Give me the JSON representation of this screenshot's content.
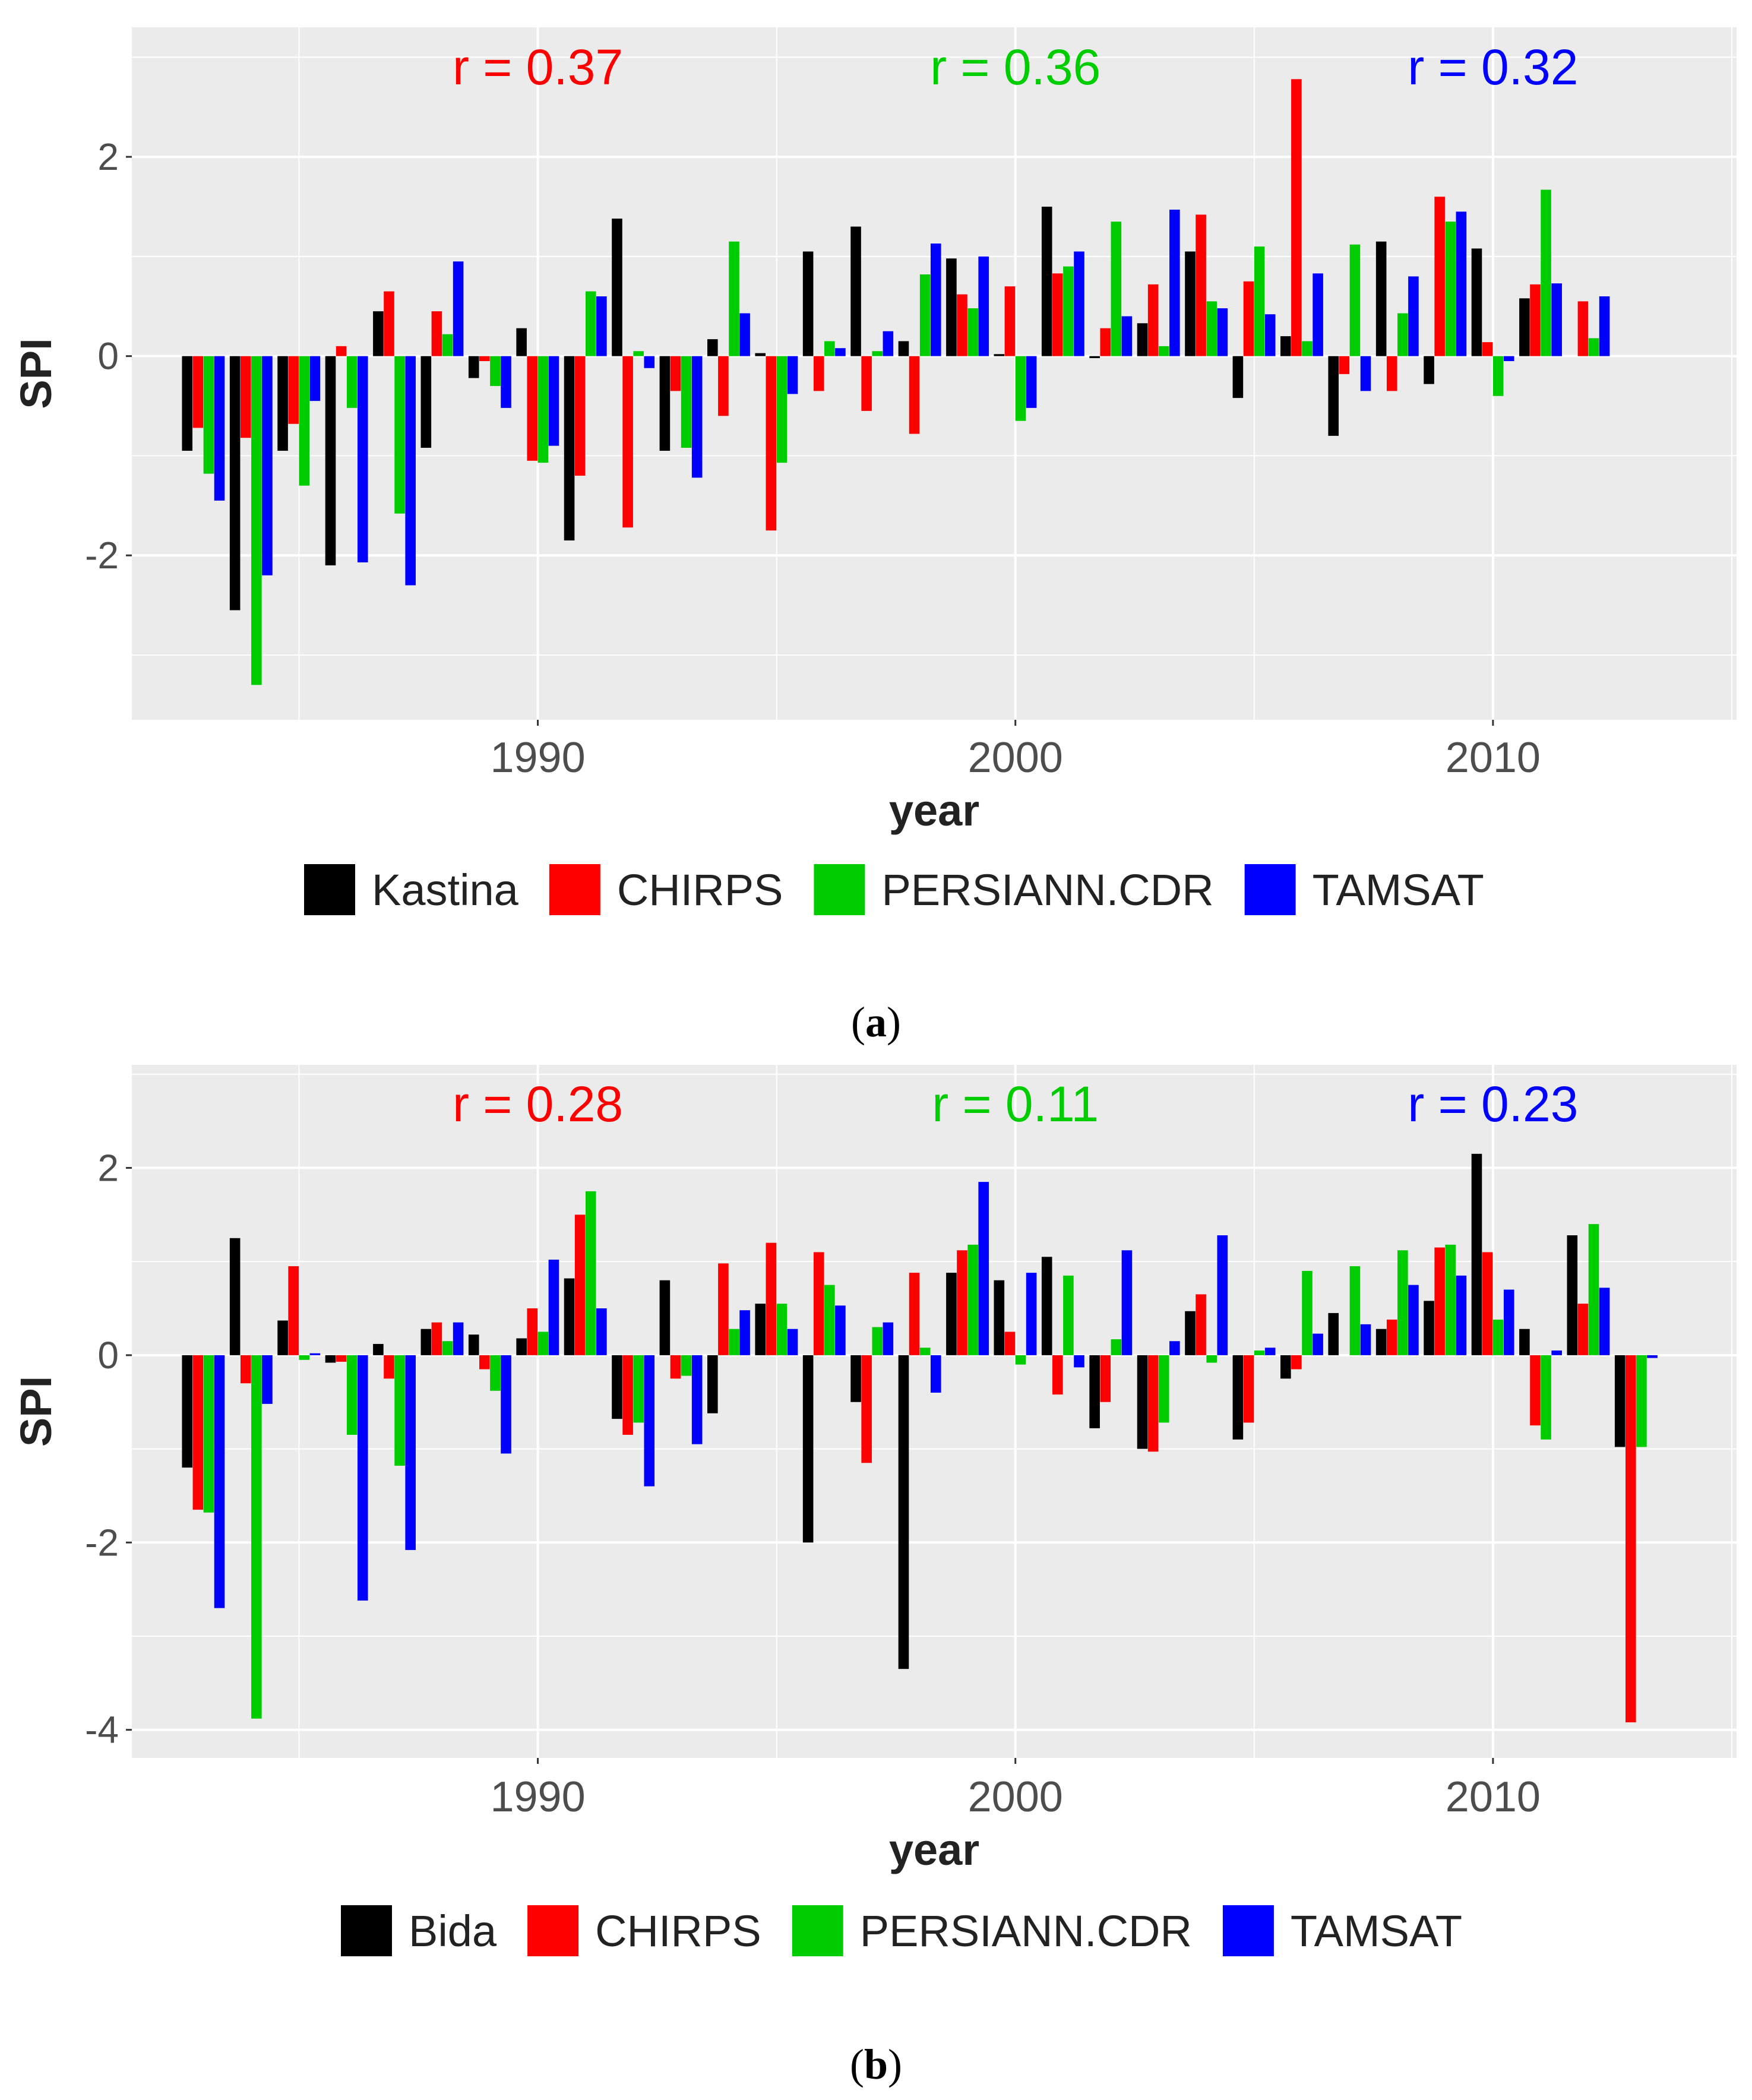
{
  "colors": {
    "station": "#000000",
    "chirps": "#ff0000",
    "persiann": "#00cd00",
    "tamsat": "#0000ff",
    "panel_bg": "#ebebeb",
    "grid": "#ffffff",
    "axis_text": "#4d4d4d"
  },
  "chart_data": [
    {
      "type": "bar",
      "panel": "a",
      "caption_open": "(",
      "caption_letter": "a",
      "caption_close": ")",
      "xlabel": "year",
      "ylabel": "SPI",
      "x_tick_labels": [
        "1990",
        "2000",
        "2010"
      ],
      "x_ticks": [
        1990,
        2000,
        2010
      ],
      "xlim": [
        1981.5,
        2015.1
      ],
      "y_tick_labels": [
        "2",
        "0",
        "-2"
      ],
      "y_ticks": [
        2,
        0,
        -2
      ],
      "ylim": [
        -3.65,
        3.3
      ],
      "annotations": [
        {
          "text": "r = 0.37",
          "color": "#ff0000",
          "year": 1990
        },
        {
          "text": "r = 0.36",
          "color": "#00cd00",
          "year": 2000
        },
        {
          "text": "r = 0.32",
          "color": "#0000ff",
          "year": 2010
        }
      ],
      "legend": [
        "Kastina",
        "CHIRPS",
        "PERSIANN.CDR",
        "TAMSAT"
      ],
      "years": [
        1983,
        1984,
        1985,
        1986,
        1987,
        1988,
        1989,
        1990,
        1991,
        1992,
        1993,
        1994,
        1995,
        1996,
        1997,
        1998,
        1999,
        2000,
        2001,
        2002,
        2003,
        2004,
        2005,
        2006,
        2007,
        2008,
        2009,
        2010,
        2011,
        2012,
        2013
      ],
      "series": [
        {
          "name": "Kastina",
          "color_key": "station",
          "values": [
            -0.95,
            -2.55,
            -0.95,
            -2.1,
            0.45,
            -0.92,
            -0.22,
            0.28,
            -1.85,
            1.38,
            -0.95,
            0.17,
            0.03,
            1.05,
            1.3,
            0.15,
            0.98,
            0.02,
            1.5,
            -0.02,
            0.33,
            1.05,
            -0.42,
            0.2,
            -0.8,
            1.15,
            -0.28,
            1.08,
            0.58,
            0.0,
            0.0
          ]
        },
        {
          "name": "CHIRPS",
          "color_key": "chirps",
          "values": [
            -0.72,
            -0.82,
            -0.68,
            0.1,
            0.65,
            0.45,
            -0.05,
            -1.05,
            -1.2,
            -1.72,
            -0.35,
            -0.6,
            -1.75,
            -0.35,
            -0.55,
            -0.78,
            0.62,
            0.7,
            0.83,
            0.28,
            0.72,
            1.42,
            0.75,
            2.78,
            -0.18,
            -0.35,
            1.6,
            0.14,
            0.72,
            0.55,
            0.0
          ]
        },
        {
          "name": "PERSIANN.CDR",
          "color_key": "persiann",
          "values": [
            -1.18,
            -3.3,
            -1.3,
            -0.52,
            -1.58,
            0.22,
            -0.3,
            -1.07,
            0.65,
            0.05,
            -0.92,
            1.15,
            -1.07,
            0.15,
            0.05,
            0.82,
            0.48,
            -0.65,
            0.9,
            1.35,
            0.1,
            0.55,
            1.1,
            0.15,
            1.12,
            0.43,
            1.35,
            -0.4,
            1.67,
            0.18,
            0.0
          ]
        },
        {
          "name": "TAMSAT",
          "color_key": "tamsat",
          "values": [
            -1.45,
            -2.2,
            -0.45,
            -2.07,
            -2.3,
            0.95,
            -0.52,
            -0.9,
            0.6,
            -0.12,
            -1.22,
            0.43,
            -0.38,
            0.08,
            0.25,
            1.13,
            1.0,
            -0.52,
            1.05,
            0.4,
            1.47,
            0.48,
            0.42,
            0.83,
            -0.35,
            0.8,
            1.45,
            -0.05,
            0.73,
            0.6,
            0.0
          ]
        }
      ]
    },
    {
      "type": "bar",
      "panel": "b",
      "caption_open": "(",
      "caption_letter": "b",
      "caption_close": ")",
      "xlabel": "year",
      "ylabel": "SPI",
      "x_tick_labels": [
        "1990",
        "2000",
        "2010"
      ],
      "x_ticks": [
        1990,
        2000,
        2010
      ],
      "xlim": [
        1981.5,
        2015.1
      ],
      "y_tick_labels": [
        "2",
        "0",
        "-2",
        "-4"
      ],
      "y_ticks": [
        2,
        0,
        -2,
        -4
      ],
      "ylim": [
        -4.3,
        3.1
      ],
      "annotations": [
        {
          "text": "r = 0.28",
          "color": "#ff0000",
          "year": 1990
        },
        {
          "text": "r = 0.11",
          "color": "#00cd00",
          "year": 2000
        },
        {
          "text": "r = 0.23",
          "color": "#0000ff",
          "year": 2010
        }
      ],
      "legend": [
        "Bida",
        "CHIRPS",
        "PERSIANN.CDR",
        "TAMSAT"
      ],
      "years": [
        1983,
        1984,
        1985,
        1986,
        1987,
        1988,
        1989,
        1990,
        1991,
        1992,
        1993,
        1994,
        1995,
        1996,
        1997,
        1998,
        1999,
        2000,
        2001,
        2002,
        2003,
        2004,
        2005,
        2006,
        2007,
        2008,
        2009,
        2010,
        2011,
        2012,
        2013
      ],
      "series": [
        {
          "name": "Bida",
          "color_key": "station",
          "values": [
            -1.2,
            1.25,
            0.37,
            -0.08,
            0.12,
            0.28,
            0.22,
            0.18,
            0.82,
            -0.68,
            0.8,
            -0.62,
            0.55,
            -2.0,
            -0.5,
            -3.35,
            0.88,
            0.8,
            1.05,
            -0.78,
            -1.0,
            0.47,
            -0.9,
            -0.25,
            0.45,
            0.28,
            0.58,
            2.15,
            0.28,
            1.28,
            -0.98
          ]
        },
        {
          "name": "CHIRPS",
          "color_key": "chirps",
          "values": [
            -1.65,
            -0.3,
            0.95,
            -0.07,
            -0.25,
            0.35,
            -0.15,
            0.5,
            1.5,
            -0.85,
            -0.25,
            0.98,
            1.2,
            1.1,
            -1.15,
            0.88,
            1.12,
            0.25,
            -0.42,
            -0.5,
            -1.03,
            0.65,
            -0.72,
            -0.15,
            0.0,
            0.38,
            1.15,
            1.1,
            -0.75,
            0.55,
            -3.92
          ]
        },
        {
          "name": "PERSIANN.CDR",
          "color_key": "persiann",
          "values": [
            -1.68,
            -3.88,
            -0.05,
            -0.85,
            -1.18,
            0.15,
            -0.38,
            0.25,
            1.75,
            -0.72,
            -0.22,
            0.28,
            0.55,
            0.75,
            0.3,
            0.08,
            1.18,
            -0.1,
            0.85,
            0.17,
            -0.72,
            -0.08,
            0.05,
            0.9,
            0.95,
            1.12,
            1.18,
            0.38,
            -0.9,
            1.4,
            -0.98
          ]
        },
        {
          "name": "TAMSAT",
          "color_key": "tamsat",
          "values": [
            -2.7,
            -0.52,
            0.02,
            -2.62,
            -2.08,
            0.35,
            -1.05,
            1.02,
            0.5,
            -1.4,
            -0.95,
            0.48,
            0.28,
            0.53,
            0.35,
            -0.4,
            1.85,
            0.88,
            -0.13,
            1.12,
            0.15,
            1.28,
            0.08,
            0.23,
            0.33,
            0.75,
            0.85,
            0.7,
            0.05,
            0.72,
            -0.03
          ]
        }
      ]
    }
  ]
}
